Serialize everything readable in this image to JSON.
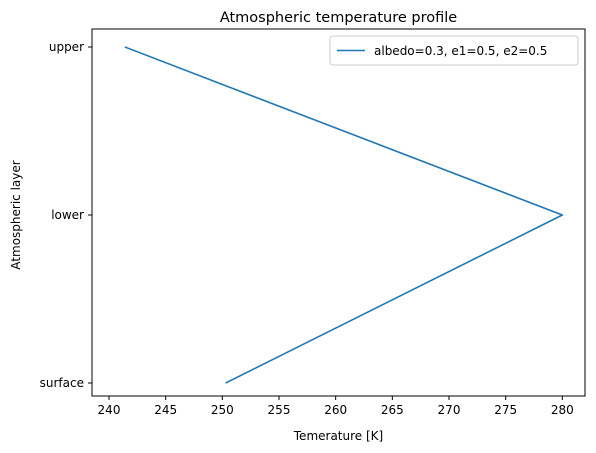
{
  "chart_data": {
    "type": "line",
    "title": "Atmospheric temperature profile",
    "xlabel": "Temerature [K]",
    "ylabel": "Atmospheric layer",
    "xlim": [
      238.5,
      282.0
    ],
    "x_ticks": [
      240,
      245,
      250,
      255,
      260,
      265,
      270,
      275,
      280
    ],
    "categories": [
      "surface",
      "lower",
      "upper"
    ],
    "legend_position": "top-right",
    "grid": false,
    "series": [
      {
        "name": "albedo=0.3, e1=0.5, e2=0.5",
        "color": "#1f77b4",
        "x": [
          250.3,
          280.0,
          241.4
        ],
        "y": [
          "surface",
          "lower",
          "upper"
        ]
      }
    ]
  }
}
